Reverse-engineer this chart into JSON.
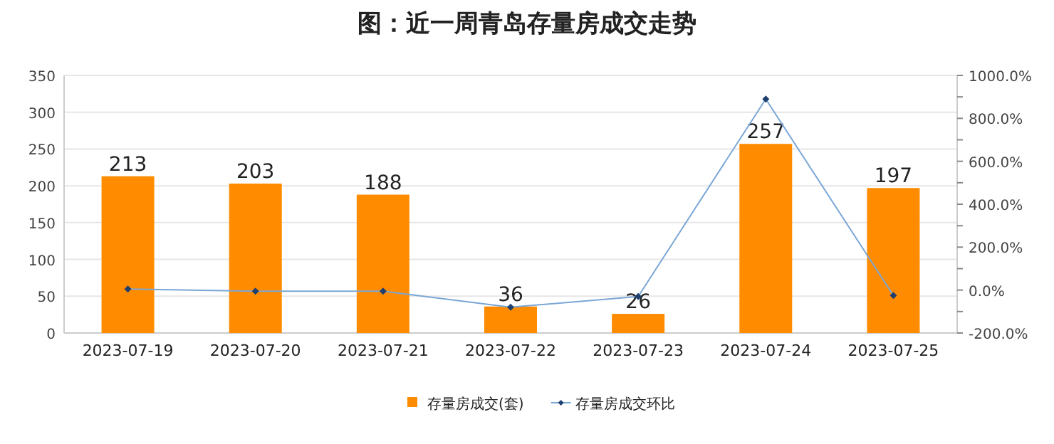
{
  "chart_data": {
    "type": "bar",
    "title": "图：近一周青岛存量房成交走势",
    "categories": [
      "2023-07-19",
      "2023-07-20",
      "2023-07-21",
      "2023-07-22",
      "2023-07-23",
      "2023-07-24",
      "2023-07-25"
    ],
    "series": [
      {
        "name": "存量房成交(套)",
        "color": "#ff8c00",
        "values": [
          213,
          203,
          188,
          36,
          26,
          257,
          197
        ],
        "value_labels": [
          "213",
          "203",
          "188",
          "36",
          "26",
          "257",
          "197"
        ]
      },
      {
        "name": "存量房成交环比",
        "type": "line",
        "axis": "y2",
        "color": "#7aa6d6",
        "marker": "diamond",
        "values": [
          5,
          -5,
          -5,
          -80,
          -30,
          890,
          -25
        ]
      }
    ],
    "ylim": [
      0,
      350
    ],
    "yticks": [
      0,
      50,
      100,
      150,
      200,
      250,
      300,
      350
    ],
    "y2lim": [
      -200,
      1000
    ],
    "y2ticks": [
      {
        "value": -200,
        "label": "-200.0%"
      },
      {
        "value": -100,
        "label": null
      },
      {
        "value": 0,
        "label": "0.0%"
      },
      {
        "value": 100,
        "label": null
      },
      {
        "value": 200,
        "label": "200.0%"
      },
      {
        "value": 300,
        "label": null
      },
      {
        "value": 400,
        "label": "400.0%"
      },
      {
        "value": 500,
        "label": null
      },
      {
        "value": 600,
        "label": "600.0%"
      },
      {
        "value": 700,
        "label": null
      },
      {
        "value": 800,
        "label": "800.0%"
      },
      {
        "value": 900,
        "label": null
      },
      {
        "value": 1000,
        "label": "1000.0%"
      }
    ],
    "grid": "y",
    "legend": "bottom"
  }
}
